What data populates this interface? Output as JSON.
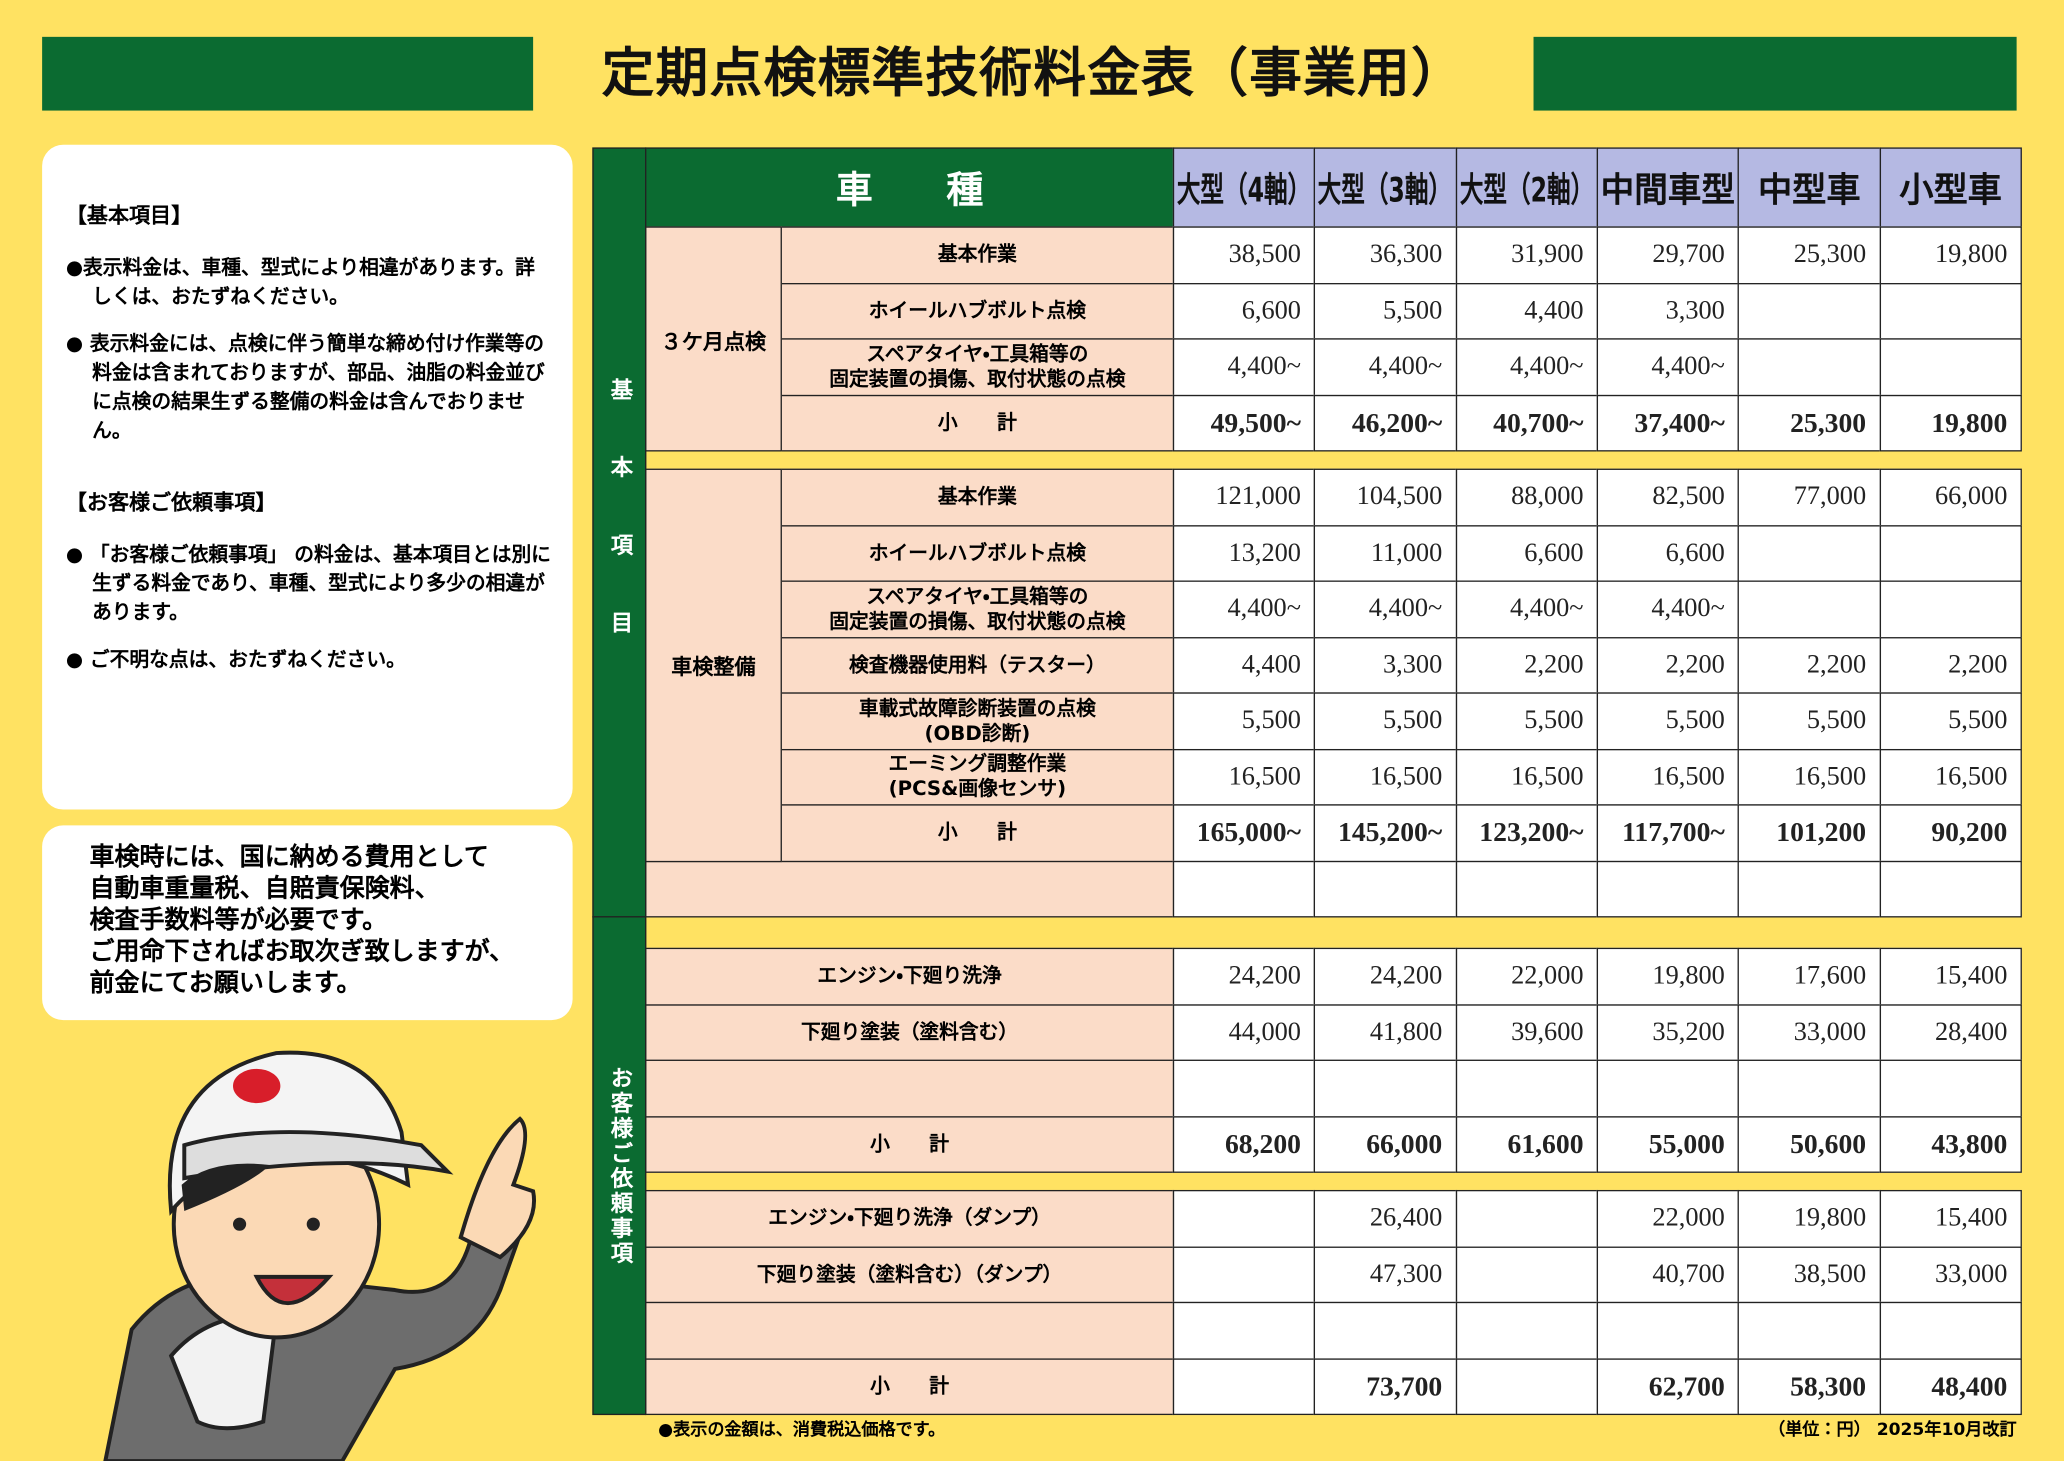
{
  "title": "定期点検標準技術料金表（事業用）",
  "notes": {
    "sections": [
      {
        "heading": "【基本項目】",
        "bullets": [
          "●表示料金は、車種、型式により相違があります。詳しくは、おたずねください。",
          "● 表示料金には、点検に伴う簡単な締め付け作業等の料金は含まれておりますが、部品、油脂の料金並びに点検の結果生ずる整備の料金は含んでおりません。"
        ]
      },
      {
        "heading": "【お客様ご依頼事項】",
        "bullets": [
          "● 「お客様ご依頼事項」 の料金は、基本項目とは別に生ずる料金であり、車種、型式により多少の相違があります。",
          "● ご不明な点は、おたずねください。"
        ]
      }
    ],
    "inspection_note": [
      "車検時には、国に納める費用として",
      "自動車重量税、自賠責保険料、",
      "検査手数料等が必要です。",
      "ご用命下さればお取次ぎ致しますが、",
      "前金にてお願いします。"
    ]
  },
  "table": {
    "header_label": "車　　種",
    "columns": [
      "大型（4軸）",
      "大型（3軸）",
      "大型（2軸）",
      "中間車型",
      "中型車",
      "小型車"
    ],
    "sections": [
      {
        "label": "基本項目",
        "groups": [
          {
            "label": "３ケ月点検",
            "rows": [
              {
                "item": "基本作業",
                "values": [
                  "38,500",
                  "36,300",
                  "31,900",
                  "29,700",
                  "25,300",
                  "19,800"
                ]
              },
              {
                "item": "ホイールハブボルト点検",
                "values": [
                  "6,600",
                  "5,500",
                  "4,400",
                  "3,300",
                  null,
                  null
                ]
              },
              {
                "item": "スペアタイヤ・工具箱等の\n固定装置の損傷、取付状態の点検",
                "values": [
                  "4,400~",
                  "4,400~",
                  "4,400~",
                  "4,400~",
                  null,
                  null
                ]
              },
              {
                "item": "小　　計",
                "bold": true,
                "values": [
                  "49,500~",
                  "46,200~",
                  "40,700~",
                  "37,400~",
                  "25,300",
                  "19,800"
                ]
              }
            ]
          },
          {
            "label": "車検整備",
            "rows": [
              {
                "item": "基本作業",
                "values": [
                  "121,000",
                  "104,500",
                  "88,000",
                  "82,500",
                  "77,000",
                  "66,000"
                ]
              },
              {
                "item": "ホイールハブボルト点検",
                "values": [
                  "13,200",
                  "11,000",
                  "6,600",
                  "6,600",
                  null,
                  null
                ]
              },
              {
                "item": "スペアタイヤ・工具箱等の\n固定装置の損傷、取付状態の点検",
                "values": [
                  "4,400~",
                  "4,400~",
                  "4,400~",
                  "4,400~",
                  null,
                  null
                ]
              },
              {
                "item": "検査機器使用料（テスター）",
                "values": [
                  "4,400",
                  "3,300",
                  "2,200",
                  "2,200",
                  "2,200",
                  "2,200"
                ]
              },
              {
                "item": "車載式故障診断装置の点検\n(OBD診断)",
                "values": [
                  "5,500",
                  "5,500",
                  "5,500",
                  "5,500",
                  "5,500",
                  "5,500"
                ]
              },
              {
                "item": "エーミング調整作業\n(PCS&画像センサ)",
                "values": [
                  "16,500",
                  "16,500",
                  "16,500",
                  "16,500",
                  "16,500",
                  "16,500"
                ]
              },
              {
                "item": "小　　計",
                "bold": true,
                "values": [
                  "165,000~",
                  "145,200~",
                  "123,200~",
                  "117,700~",
                  "101,200",
                  "90,200"
                ]
              },
              {
                "item": null,
                "values": [
                  null,
                  null,
                  null,
                  null,
                  null,
                  null
                ]
              }
            ]
          }
        ]
      },
      {
        "label": "お客様ご依頼事項",
        "groups": [
          {
            "label": null,
            "rows": [
              {
                "item": "エンジン・下廻り洗浄",
                "values": [
                  "24,200",
                  "24,200",
                  "22,000",
                  "19,800",
                  "17,600",
                  "15,400"
                ]
              },
              {
                "item": "下廻り塗装（塗料含む）",
                "values": [
                  "44,000",
                  "41,800",
                  "39,600",
                  "35,200",
                  "33,000",
                  "28,400"
                ]
              },
              {
                "item": null,
                "values": [
                  null,
                  null,
                  null,
                  null,
                  null,
                  null
                ]
              },
              {
                "item": "小　　計",
                "bold": true,
                "values": [
                  "68,200",
                  "66,000",
                  "61,600",
                  "55,000",
                  "50,600",
                  "43,800"
                ]
              }
            ]
          },
          {
            "label": null,
            "rows": [
              {
                "item": "エンジン・下廻り洗浄（ダンプ）",
                "values": [
                  null,
                  "26,400",
                  null,
                  "22,000",
                  "19,800",
                  "15,400"
                ]
              },
              {
                "item": "下廻り塗装（塗料含む）（ダンプ）",
                "values": [
                  null,
                  "47,300",
                  null,
                  "40,700",
                  "38,500",
                  "33,000"
                ]
              },
              {
                "item": null,
                "values": [
                  null,
                  null,
                  null,
                  null,
                  null,
                  null
                ]
              },
              {
                "item": "小　　計",
                "bold": true,
                "values": [
                  null,
                  "73,700",
                  null,
                  "62,700",
                  "58,300",
                  "48,400"
                ]
              }
            ]
          }
        ]
      }
    ]
  },
  "footer": {
    "note": "●表示の金額は、消費税込価格です。",
    "revision": "（単位：円） 2025年10月改訂"
  }
}
